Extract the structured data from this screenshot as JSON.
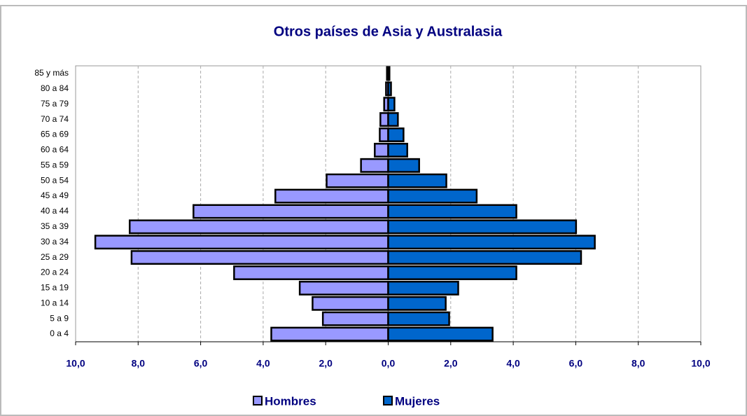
{
  "chart_data": {
    "type": "pyramid",
    "title": "Otros países de Asia y Australasia",
    "categories": [
      "0 a 4",
      "5 a 9",
      "10 a 14",
      "15 a 19",
      "20 a 24",
      "25 a 29",
      "30 a 34",
      "35 a 39",
      "40 a 44",
      "45 a 49",
      "50 a 54",
      "55 a 59",
      "60 a 64",
      "65 a 69",
      "70 a 74",
      "75 a 79",
      "80 a 84",
      "85 y más"
    ],
    "series": [
      {
        "name": "Hombres",
        "color": "#9999ff",
        "side": "left",
        "values": [
          3.74,
          2.09,
          2.42,
          2.83,
          4.93,
          8.21,
          9.37,
          8.27,
          6.23,
          3.61,
          1.97,
          0.87,
          0.43,
          0.27,
          0.25,
          0.13,
          0.07,
          0.04
        ]
      },
      {
        "name": "Mujeres",
        "color": "#0066cc",
        "side": "right",
        "values": [
          3.34,
          1.95,
          1.84,
          2.24,
          4.1,
          6.17,
          6.61,
          6.01,
          4.1,
          2.83,
          1.86,
          0.99,
          0.61,
          0.49,
          0.31,
          0.2,
          0.09,
          0.04
        ]
      }
    ],
    "xlim": [
      -10,
      10
    ],
    "xticks": [
      {
        "value": -10,
        "label": "10,0"
      },
      {
        "value": -8,
        "label": "8,0"
      },
      {
        "value": -6,
        "label": "6,0"
      },
      {
        "value": -4,
        "label": "4,0"
      },
      {
        "value": -2,
        "label": "2,0"
      },
      {
        "value": 0,
        "label": "0,0"
      },
      {
        "value": 2,
        "label": "2,0"
      },
      {
        "value": 4,
        "label": "4,0"
      },
      {
        "value": 6,
        "label": "6,0"
      },
      {
        "value": 8,
        "label": "8,0"
      },
      {
        "value": 10,
        "label": "10,0"
      }
    ],
    "grid": true
  }
}
